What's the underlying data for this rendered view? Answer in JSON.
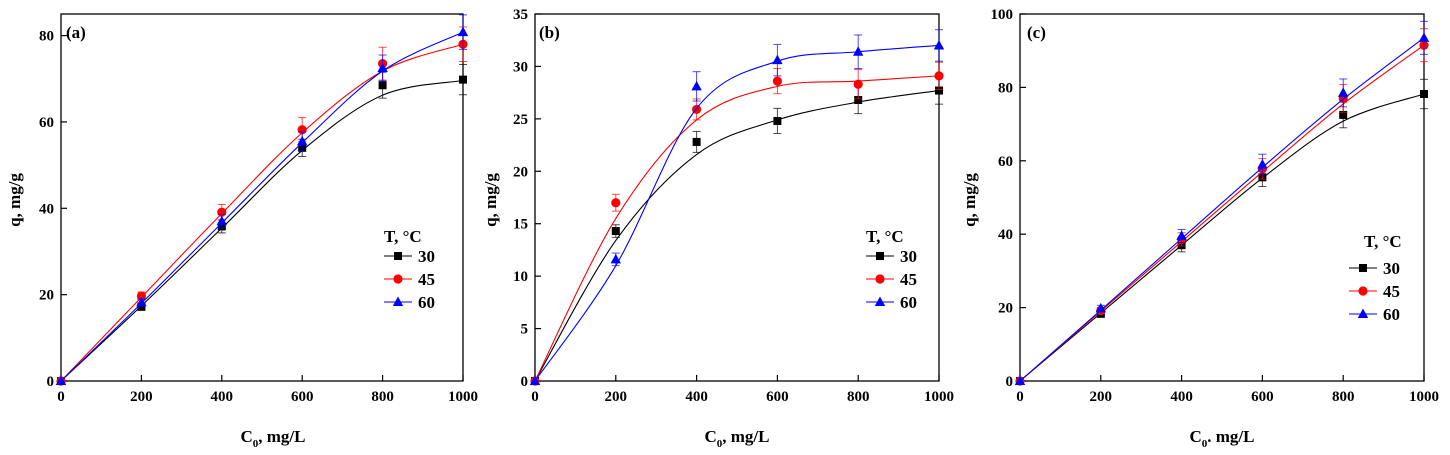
{
  "figure": {
    "panels": [
      {
        "panel_label": "(a)",
        "xlabel_main": "C",
        "xlabel_sub": "0",
        "xlabel_rest": ", mg/L",
        "ylabel": "q, mg/g"
      },
      {
        "panel_label": "(b)",
        "xlabel_main": "C",
        "xlabel_sub": "0",
        "xlabel_rest": ", mg/L",
        "ylabel": "q, mg/g"
      },
      {
        "panel_label": "(c)",
        "xlabel_main": "C",
        "xlabel_sub": "0",
        "xlabel_rest": ". mg/L",
        "ylabel": "q, mg/g"
      }
    ],
    "legend_title": "T, °C"
  },
  "chart_data": [
    {
      "type": "scatter",
      "panel_label": "(a)",
      "xlabel": "C0, mg/L",
      "ylabel": "q, mg/g",
      "xlim": [
        0,
        1000
      ],
      "ylim": [
        0,
        85
      ],
      "xticks": [
        0,
        200,
        400,
        600,
        800,
        1000
      ],
      "yticks": [
        0,
        20,
        40,
        60,
        80
      ],
      "legend_title": "T, °C",
      "legend_position": "center-right",
      "x": [
        0,
        200,
        400,
        600,
        800,
        1000
      ],
      "series": [
        {
          "name": "30",
          "color": "#000000",
          "marker": "square",
          "values": [
            0,
            17.2,
            35.8,
            54.0,
            68.5,
            69.8
          ],
          "errors": [
            0,
            0.8,
            1.5,
            2.0,
            3.0,
            3.5
          ],
          "fit": [
            0,
            17.4,
            35.4,
            53.4,
            66.2,
            69.6
          ]
        },
        {
          "name": "45",
          "color": "#ff0000",
          "marker": "circle",
          "values": [
            0,
            19.7,
            39.1,
            58.2,
            73.5,
            78.0
          ],
          "errors": [
            0,
            0.9,
            1.8,
            2.8,
            3.8,
            4.0
          ],
          "fit": [
            0,
            19.4,
            38.8,
            57.5,
            71.8,
            78.0
          ]
        },
        {
          "name": "60",
          "color": "#0000ff",
          "marker": "triangle",
          "values": [
            0,
            18.2,
            37.0,
            55.5,
            72.5,
            80.8
          ],
          "errors": [
            0,
            0.8,
            1.6,
            2.2,
            3.0,
            4.0
          ],
          "fit": [
            0,
            18.0,
            36.6,
            55.2,
            71.8,
            80.8
          ]
        }
      ]
    },
    {
      "type": "scatter",
      "panel_label": "(b)",
      "xlabel": "C0, mg/L",
      "ylabel": "q, mg/g",
      "xlim": [
        0,
        1000
      ],
      "ylim": [
        0,
        35
      ],
      "xticks": [
        0,
        200,
        400,
        600,
        800,
        1000
      ],
      "yticks": [
        0,
        5,
        10,
        15,
        20,
        25,
        30,
        35
      ],
      "legend_title": "T, °C",
      "legend_position": "center-right",
      "x": [
        0,
        200,
        400,
        600,
        800,
        1000
      ],
      "series": [
        {
          "name": "30",
          "color": "#000000",
          "marker": "square",
          "values": [
            0,
            14.3,
            22.8,
            24.8,
            26.8,
            27.7
          ],
          "errors": [
            0,
            0.6,
            1.0,
            1.2,
            1.3,
            1.3
          ],
          "fit": [
            0,
            13.4,
            21.6,
            24.9,
            26.6,
            27.7
          ]
        },
        {
          "name": "45",
          "color": "#ff0000",
          "marker": "circle",
          "values": [
            0,
            17.0,
            25.9,
            28.6,
            28.3,
            29.1
          ],
          "errors": [
            0,
            0.8,
            1.0,
            1.2,
            1.4,
            1.3
          ],
          "fit": [
            0,
            15.5,
            24.9,
            28.1,
            28.6,
            29.1
          ]
        },
        {
          "name": "60",
          "color": "#0000ff",
          "marker": "triangle",
          "values": [
            0,
            11.6,
            28.1,
            30.6,
            31.4,
            32.0
          ],
          "errors": [
            0,
            0.6,
            1.4,
            1.5,
            1.6,
            1.5
          ],
          "fit": [
            0,
            11.0,
            26.0,
            30.5,
            31.4,
            32.0
          ]
        }
      ]
    },
    {
      "type": "scatter",
      "panel_label": "(c)",
      "xlabel": "C0. mg/L",
      "ylabel": "q, mg/g",
      "xlim": [
        0,
        1000
      ],
      "ylim": [
        0,
        100
      ],
      "xticks": [
        0,
        200,
        400,
        600,
        800,
        1000
      ],
      "yticks": [
        0,
        20,
        40,
        60,
        80,
        100
      ],
      "legend_title": "T, °C",
      "legend_position": "center-right",
      "x": [
        0,
        200,
        400,
        600,
        800,
        1000
      ],
      "series": [
        {
          "name": "30",
          "color": "#000000",
          "marker": "square",
          "values": [
            0,
            18.3,
            37.0,
            55.5,
            72.5,
            78.2
          ],
          "errors": [
            0,
            0.8,
            1.8,
            2.5,
            3.5,
            4.0
          ],
          "fit": [
            0,
            18.5,
            37.0,
            55.3,
            70.8,
            78.2
          ]
        },
        {
          "name": "45",
          "color": "#ff0000",
          "marker": "circle",
          "values": [
            0,
            19.2,
            38.6,
            57.8,
            77.0,
            91.5
          ],
          "errors": [
            0,
            0.8,
            1.8,
            2.8,
            3.8,
            4.5
          ],
          "fit": [
            0,
            19.0,
            38.0,
            57.0,
            75.5,
            91.5
          ]
        },
        {
          "name": "60",
          "color": "#0000ff",
          "marker": "triangle",
          "values": [
            0,
            19.8,
            39.5,
            59.0,
            78.5,
            93.5
          ],
          "errors": [
            0,
            0.8,
            1.8,
            2.8,
            3.8,
            4.5
          ],
          "fit": [
            0,
            19.3,
            38.8,
            58.2,
            76.8,
            93.5
          ]
        }
      ]
    }
  ]
}
